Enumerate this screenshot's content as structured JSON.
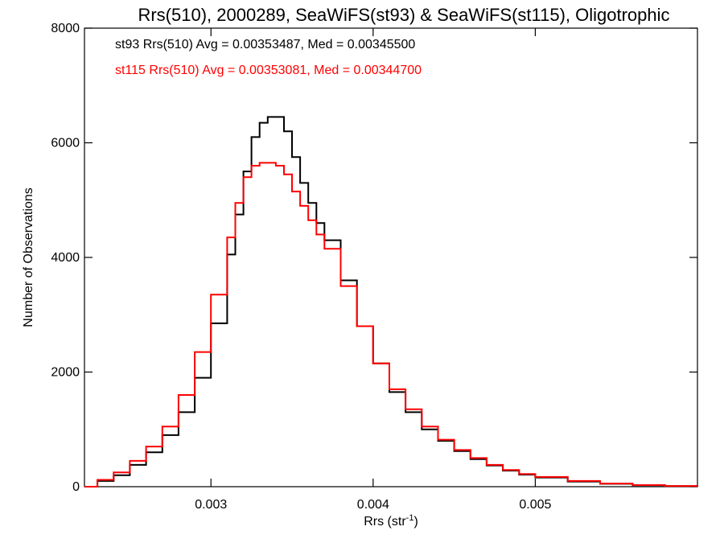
{
  "chart_data": {
    "type": "line",
    "title": "Rrs(510), 2000289, SeaWiFS(st93) & SeaWiFS(st115), Oligotrophic",
    "xlabel": "Rrs (str",
    "xlabel_sup": "-1",
    "xlabel_close": ")",
    "ylabel": "Number of Observations",
    "xlim": [
      0.00222,
      0.006
    ],
    "ylim": [
      0,
      8000
    ],
    "x_ticks": [
      0.003,
      0.004,
      0.005
    ],
    "x_tick_labels": [
      "0.003",
      "0.004",
      "0.005"
    ],
    "y_ticks": [
      0,
      2000,
      4000,
      6000,
      8000
    ],
    "y_tick_labels": [
      "0",
      "2000",
      "4000",
      "6000",
      "8000"
    ],
    "legend_placement": "top-left",
    "series": [
      {
        "name": "st93",
        "color": "#000000",
        "annotation": "st93 Rrs(510) Avg = 0.00353487, Med = 0.00345500",
        "x": [
          0.00222,
          0.0023,
          0.0024,
          0.0025,
          0.0026,
          0.0027,
          0.0028,
          0.0029,
          0.003,
          0.0031,
          0.00315,
          0.0032,
          0.00325,
          0.0033,
          0.00335,
          0.0034,
          0.00345,
          0.0035,
          0.00355,
          0.0036,
          0.00365,
          0.0037,
          0.0038,
          0.0039,
          0.004,
          0.0041,
          0.0042,
          0.0043,
          0.0044,
          0.0045,
          0.0046,
          0.0047,
          0.0048,
          0.0049,
          0.005,
          0.0052,
          0.0054,
          0.0056,
          0.0058,
          0.006
        ],
        "values": [
          0,
          100,
          200,
          380,
          600,
          900,
          1300,
          1900,
          2850,
          4050,
          4750,
          5500,
          6100,
          6350,
          6450,
          6450,
          6200,
          5750,
          5300,
          4950,
          4600,
          4300,
          3600,
          2800,
          2150,
          1650,
          1300,
          1000,
          800,
          620,
          480,
          370,
          280,
          210,
          160,
          90,
          50,
          25,
          10,
          0
        ]
      },
      {
        "name": "st115",
        "color": "#ff0000",
        "annotation": "st115 Rrs(510) Avg = 0.00353081, Med = 0.00344700",
        "x": [
          0.00222,
          0.0023,
          0.0024,
          0.0025,
          0.0026,
          0.0027,
          0.0028,
          0.0029,
          0.003,
          0.0031,
          0.00315,
          0.0032,
          0.00325,
          0.0033,
          0.00335,
          0.0034,
          0.00345,
          0.0035,
          0.00355,
          0.0036,
          0.00365,
          0.0037,
          0.0038,
          0.0039,
          0.004,
          0.0041,
          0.0042,
          0.0043,
          0.0044,
          0.0045,
          0.0046,
          0.0047,
          0.0048,
          0.0049,
          0.005,
          0.0052,
          0.0054,
          0.0056,
          0.0058,
          0.006
        ],
        "values": [
          0,
          120,
          250,
          450,
          700,
          1050,
          1600,
          2350,
          3350,
          4350,
          4950,
          5400,
          5600,
          5650,
          5650,
          5600,
          5450,
          5150,
          4900,
          4650,
          4400,
          4150,
          3500,
          2800,
          2150,
          1700,
          1350,
          1050,
          820,
          640,
          500,
          380,
          290,
          220,
          170,
          100,
          55,
          28,
          12,
          0
        ]
      }
    ]
  }
}
